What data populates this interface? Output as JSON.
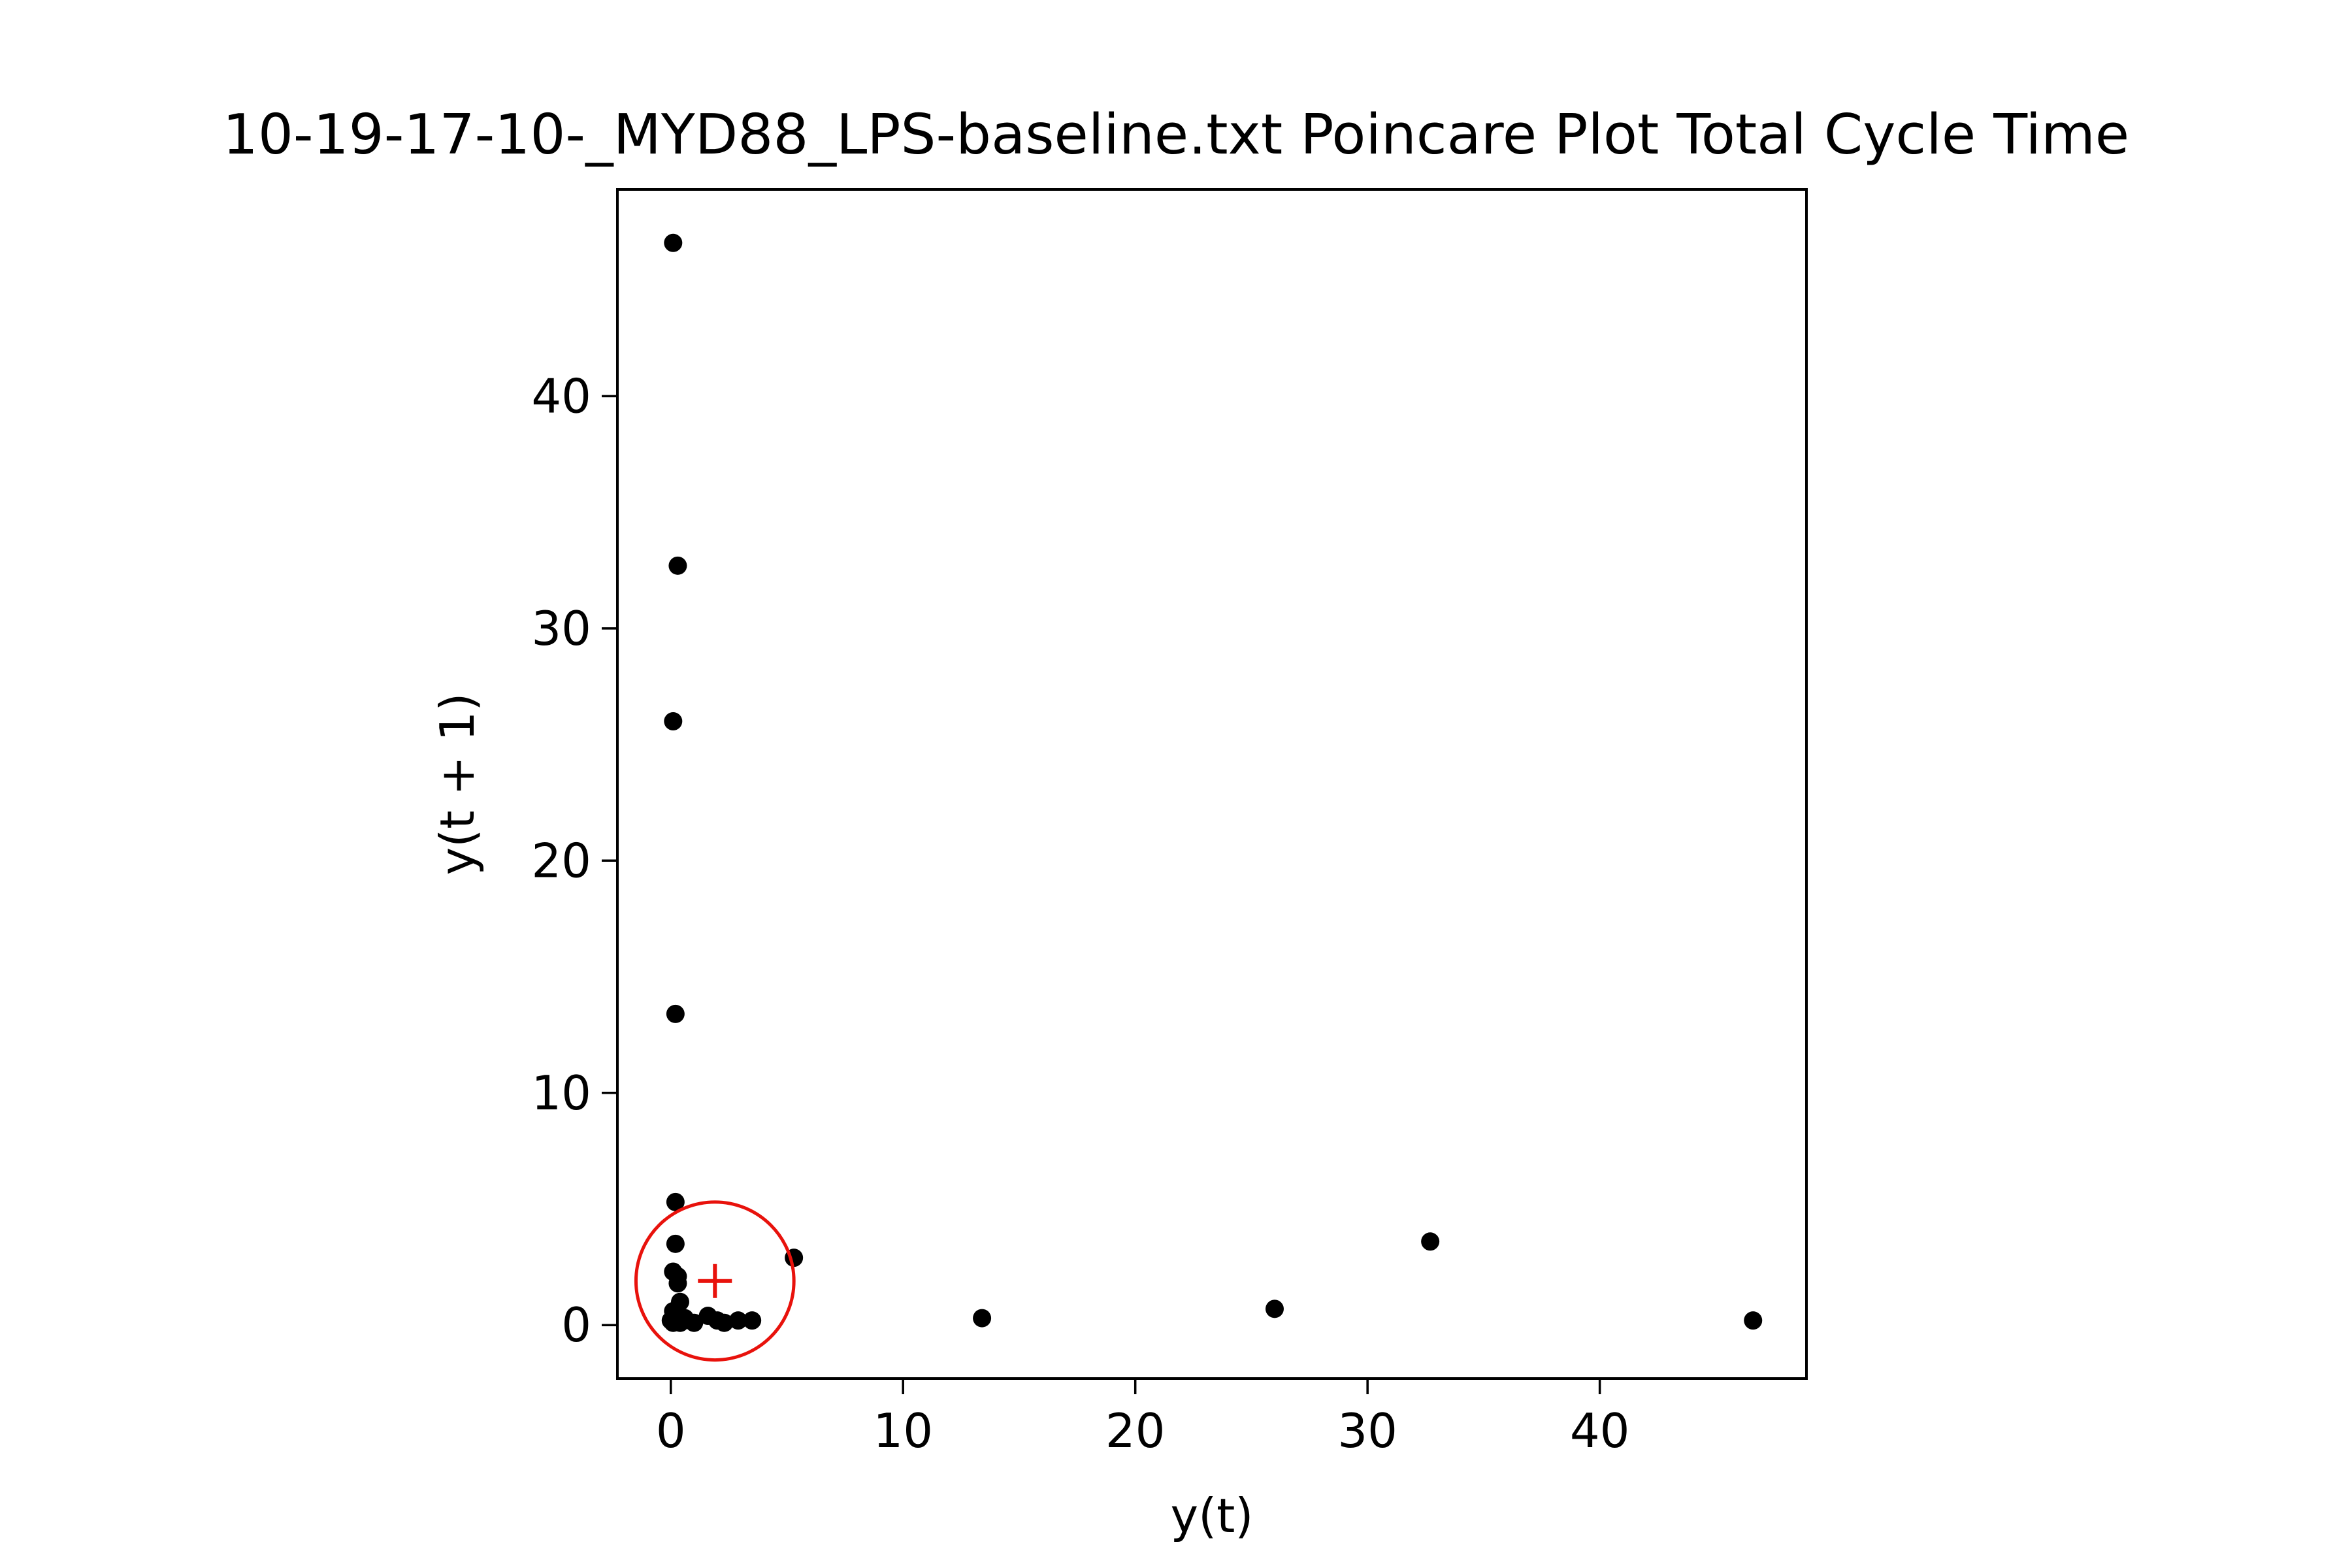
{
  "chart_data": {
    "type": "scatter",
    "title": "10-19-17-10-_MYD88_LPS-baseline.txt Poincare Plot Total Cycle Time",
    "xlabel": "y(t)",
    "ylabel": "y(t + 1)",
    "xlim": [
      -2.3,
      48.9
    ],
    "ylim": [
      -2.3,
      48.9
    ],
    "xticks": [
      0,
      10,
      20,
      30,
      40
    ],
    "yticks": [
      0,
      10,
      20,
      30,
      40
    ],
    "tick_labels": [
      "0",
      "10",
      "20",
      "30",
      "40"
    ],
    "grid": false,
    "point_color": "#000000",
    "marker_color": "#e8120c",
    "points": [
      {
        "x": 0.1,
        "y": 46.6
      },
      {
        "x": 46.6,
        "y": 0.2
      },
      {
        "x": 0.3,
        "y": 32.7
      },
      {
        "x": 32.7,
        "y": 3.6
      },
      {
        "x": 0.1,
        "y": 26.0
      },
      {
        "x": 26.0,
        "y": 0.7
      },
      {
        "x": 0.2,
        "y": 13.4
      },
      {
        "x": 13.4,
        "y": 0.3
      },
      {
        "x": 0.2,
        "y": 5.3
      },
      {
        "x": 5.3,
        "y": 2.9
      },
      {
        "x": 0.2,
        "y": 3.5
      },
      {
        "x": 0.1,
        "y": 2.3
      },
      {
        "x": 0.3,
        "y": 2.1
      },
      {
        "x": 0.3,
        "y": 1.8
      },
      {
        "x": 0.4,
        "y": 1.0
      },
      {
        "x": 0.1,
        "y": 0.6
      },
      {
        "x": 0.2,
        "y": 0.4
      },
      {
        "x": 0.0,
        "y": 0.2
      },
      {
        "x": 0.1,
        "y": 0.1
      },
      {
        "x": 0.4,
        "y": 0.1
      },
      {
        "x": 0.6,
        "y": 0.3
      },
      {
        "x": 1.0,
        "y": 0.1
      },
      {
        "x": 1.6,
        "y": 0.4
      },
      {
        "x": 2.0,
        "y": 0.2
      },
      {
        "x": 2.3,
        "y": 0.1
      },
      {
        "x": 2.9,
        "y": 0.2
      },
      {
        "x": 3.5,
        "y": 0.2
      }
    ],
    "centroid": {
      "x": 1.9,
      "y": 1.9
    },
    "circle_radius": 3.4
  }
}
